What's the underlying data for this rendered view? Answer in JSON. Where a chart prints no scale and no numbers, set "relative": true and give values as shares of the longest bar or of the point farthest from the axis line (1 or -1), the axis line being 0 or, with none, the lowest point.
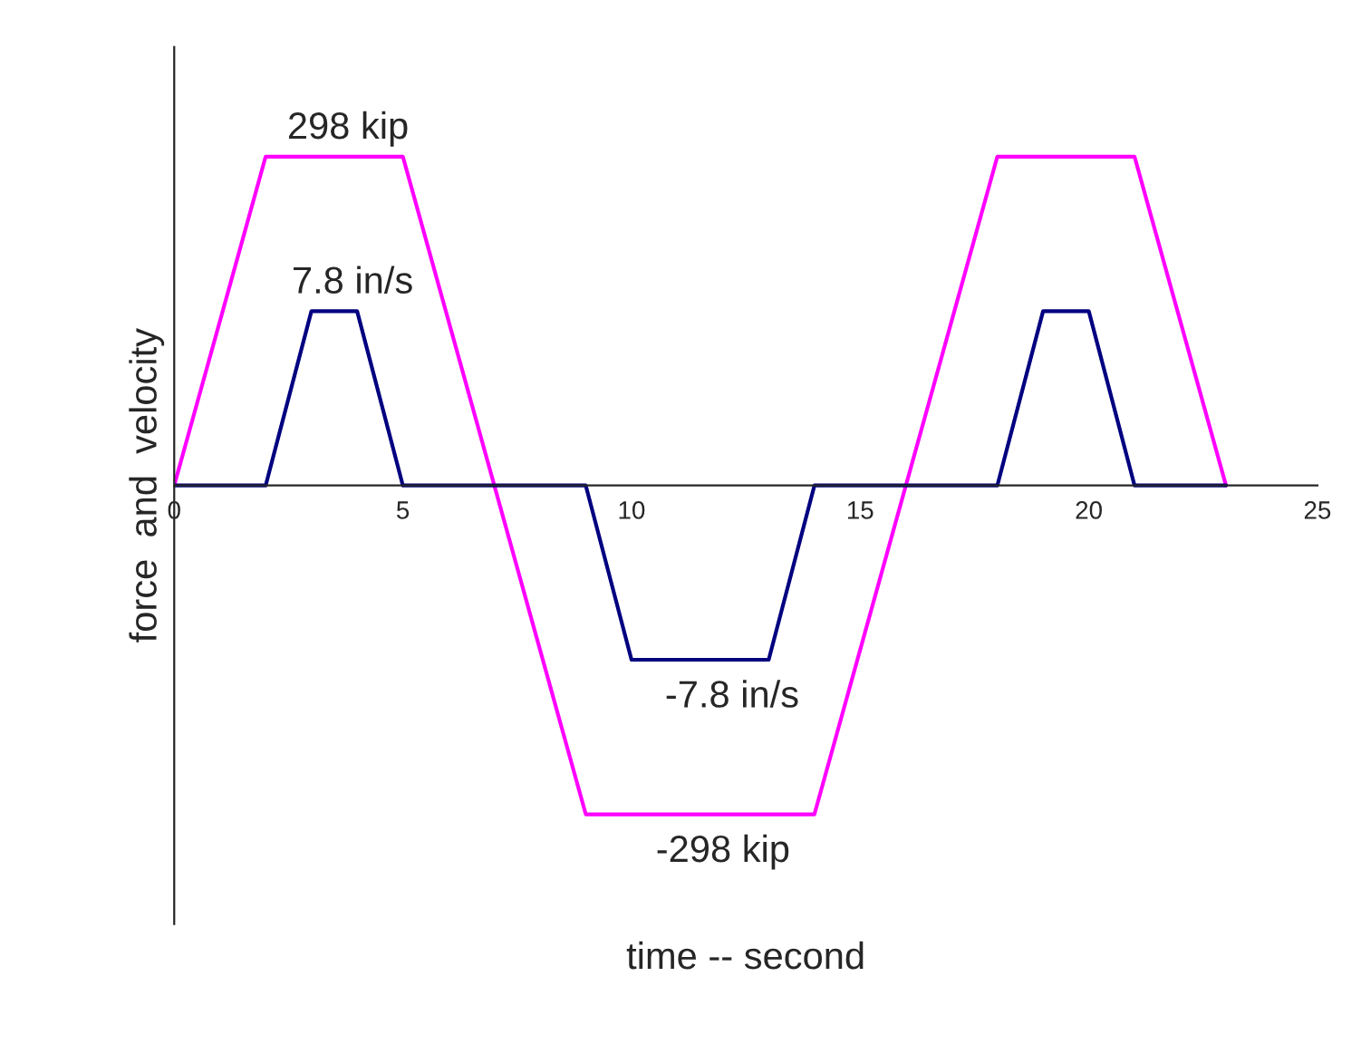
{
  "chart_data": {
    "type": "line",
    "relative": true,
    "xlabel": "time -- second",
    "ylabel": "force  and  velocity",
    "xlim": [
      0,
      25
    ],
    "xticks": [
      0,
      5,
      10,
      15,
      20,
      25
    ],
    "grid": false,
    "legend": false,
    "marker": "none",
    "line_style": "solid",
    "series": [
      {
        "color": "#ff00ff",
        "x": [
          0,
          2,
          5,
          9,
          14,
          18,
          21,
          23
        ],
        "values": [
          0,
          1,
          1,
          -1,
          -1,
          1,
          1,
          0
        ]
      },
      {
        "color": "#000080",
        "x": [
          0,
          2,
          3,
          4,
          5,
          9,
          10,
          13,
          14,
          18,
          19,
          20,
          21,
          23
        ],
        "values": [
          0,
          0,
          0.53,
          0.53,
          0,
          0,
          -0.53,
          -0.53,
          0,
          0,
          0.53,
          0.53,
          0,
          0
        ]
      }
    ],
    "annotations": [
      {
        "text": "298 kip",
        "x": 3.8,
        "y": 1
      },
      {
        "text": "7.8 in/s",
        "x": 3.9,
        "y": 0.53
      },
      {
        "text": "-7.8 in/s",
        "x": 12.2,
        "y": -0.53
      },
      {
        "text": "-298 kip",
        "x": 12,
        "y": -1
      }
    ]
  }
}
